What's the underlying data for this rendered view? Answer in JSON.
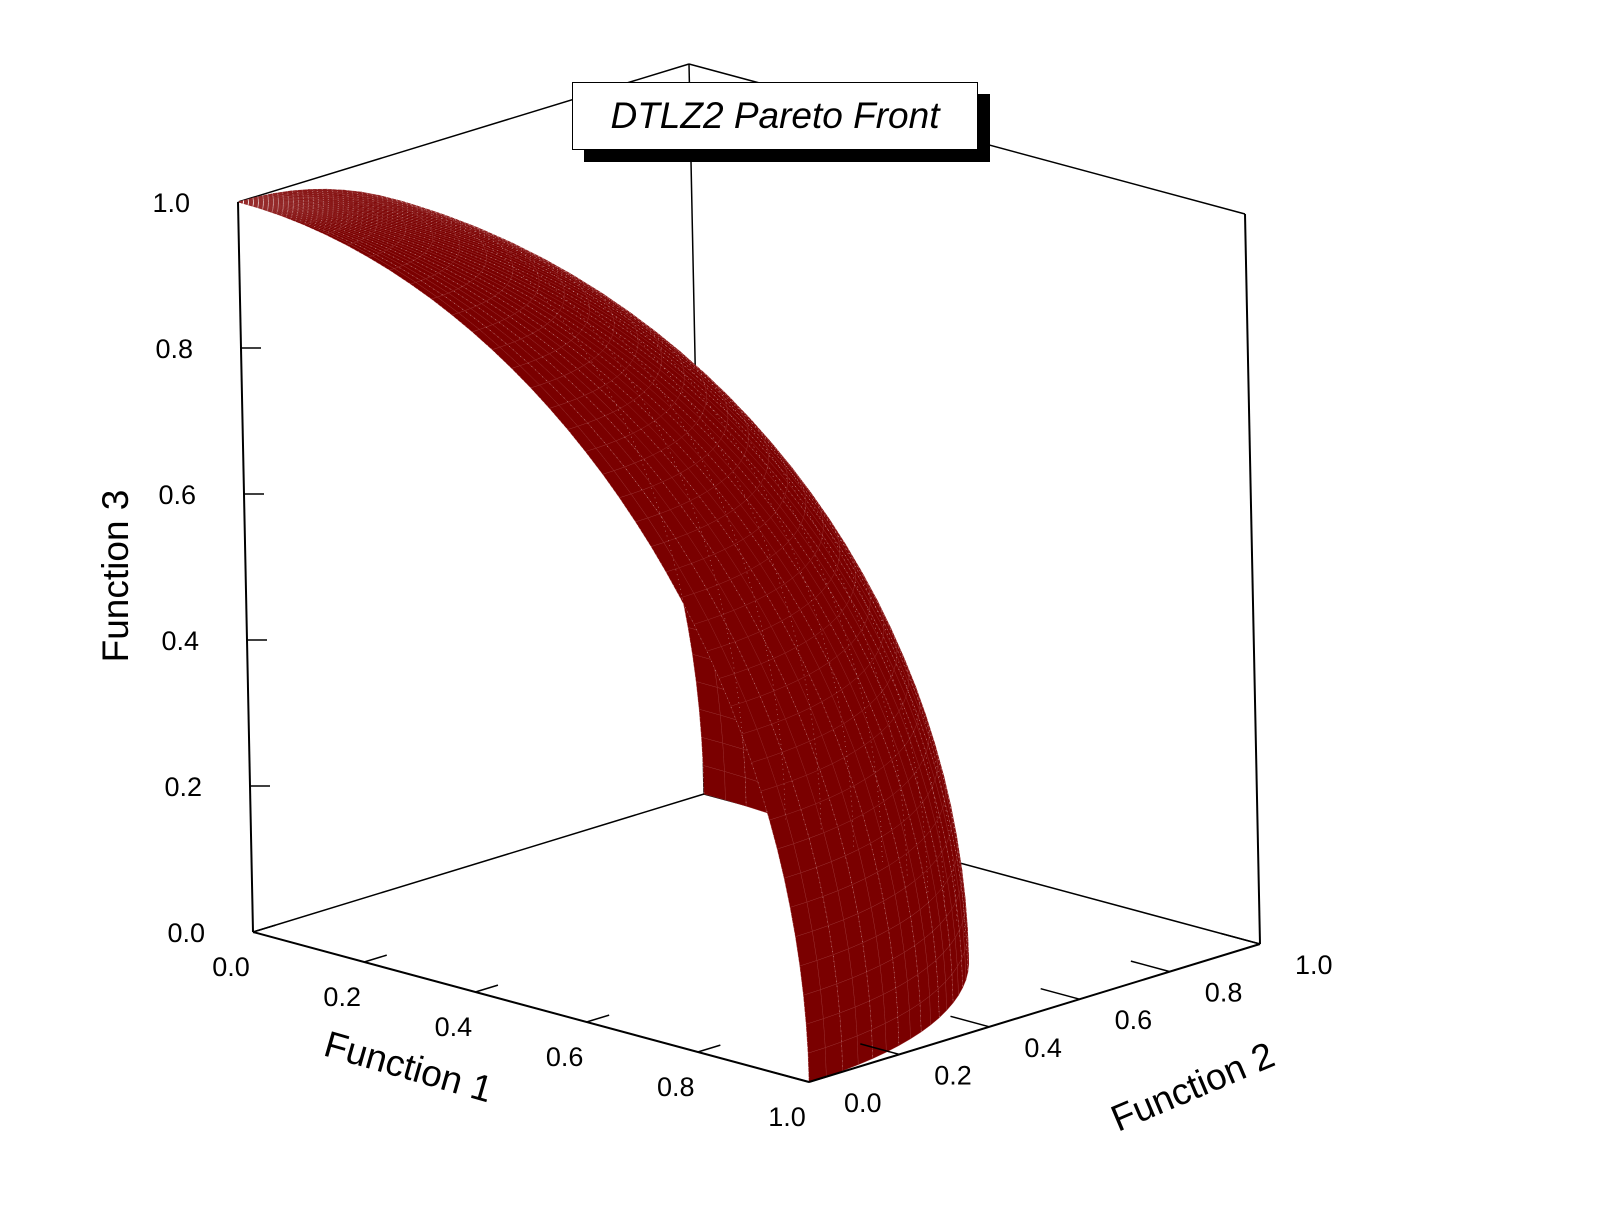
{
  "chart_data": {
    "type": "surface",
    "title": "DTLZ2 Pareto Front",
    "surface": "f1^2 + f2^2 + f3^2 = 1, f1,f2,f3 >= 0",
    "axes": {
      "x": {
        "label": "Function 1",
        "range": [
          0.0,
          1.0
        ],
        "ticks": [
          "0.0",
          "0.2",
          "0.4",
          "0.6",
          "0.8",
          "1.0"
        ]
      },
      "y": {
        "label": "Function 2",
        "range": [
          0.0,
          1.0
        ],
        "ticks": [
          "0.0",
          "0.2",
          "0.4",
          "0.6",
          "0.8",
          "1.0"
        ]
      },
      "z": {
        "label": "Function 3",
        "range": [
          0.0,
          1.0
        ],
        "ticks": [
          "0.0",
          "0.2",
          "0.4",
          "0.6",
          "0.8",
          "1.0"
        ]
      }
    },
    "series_color": "#7a0000",
    "grid": false,
    "legend": "none"
  }
}
